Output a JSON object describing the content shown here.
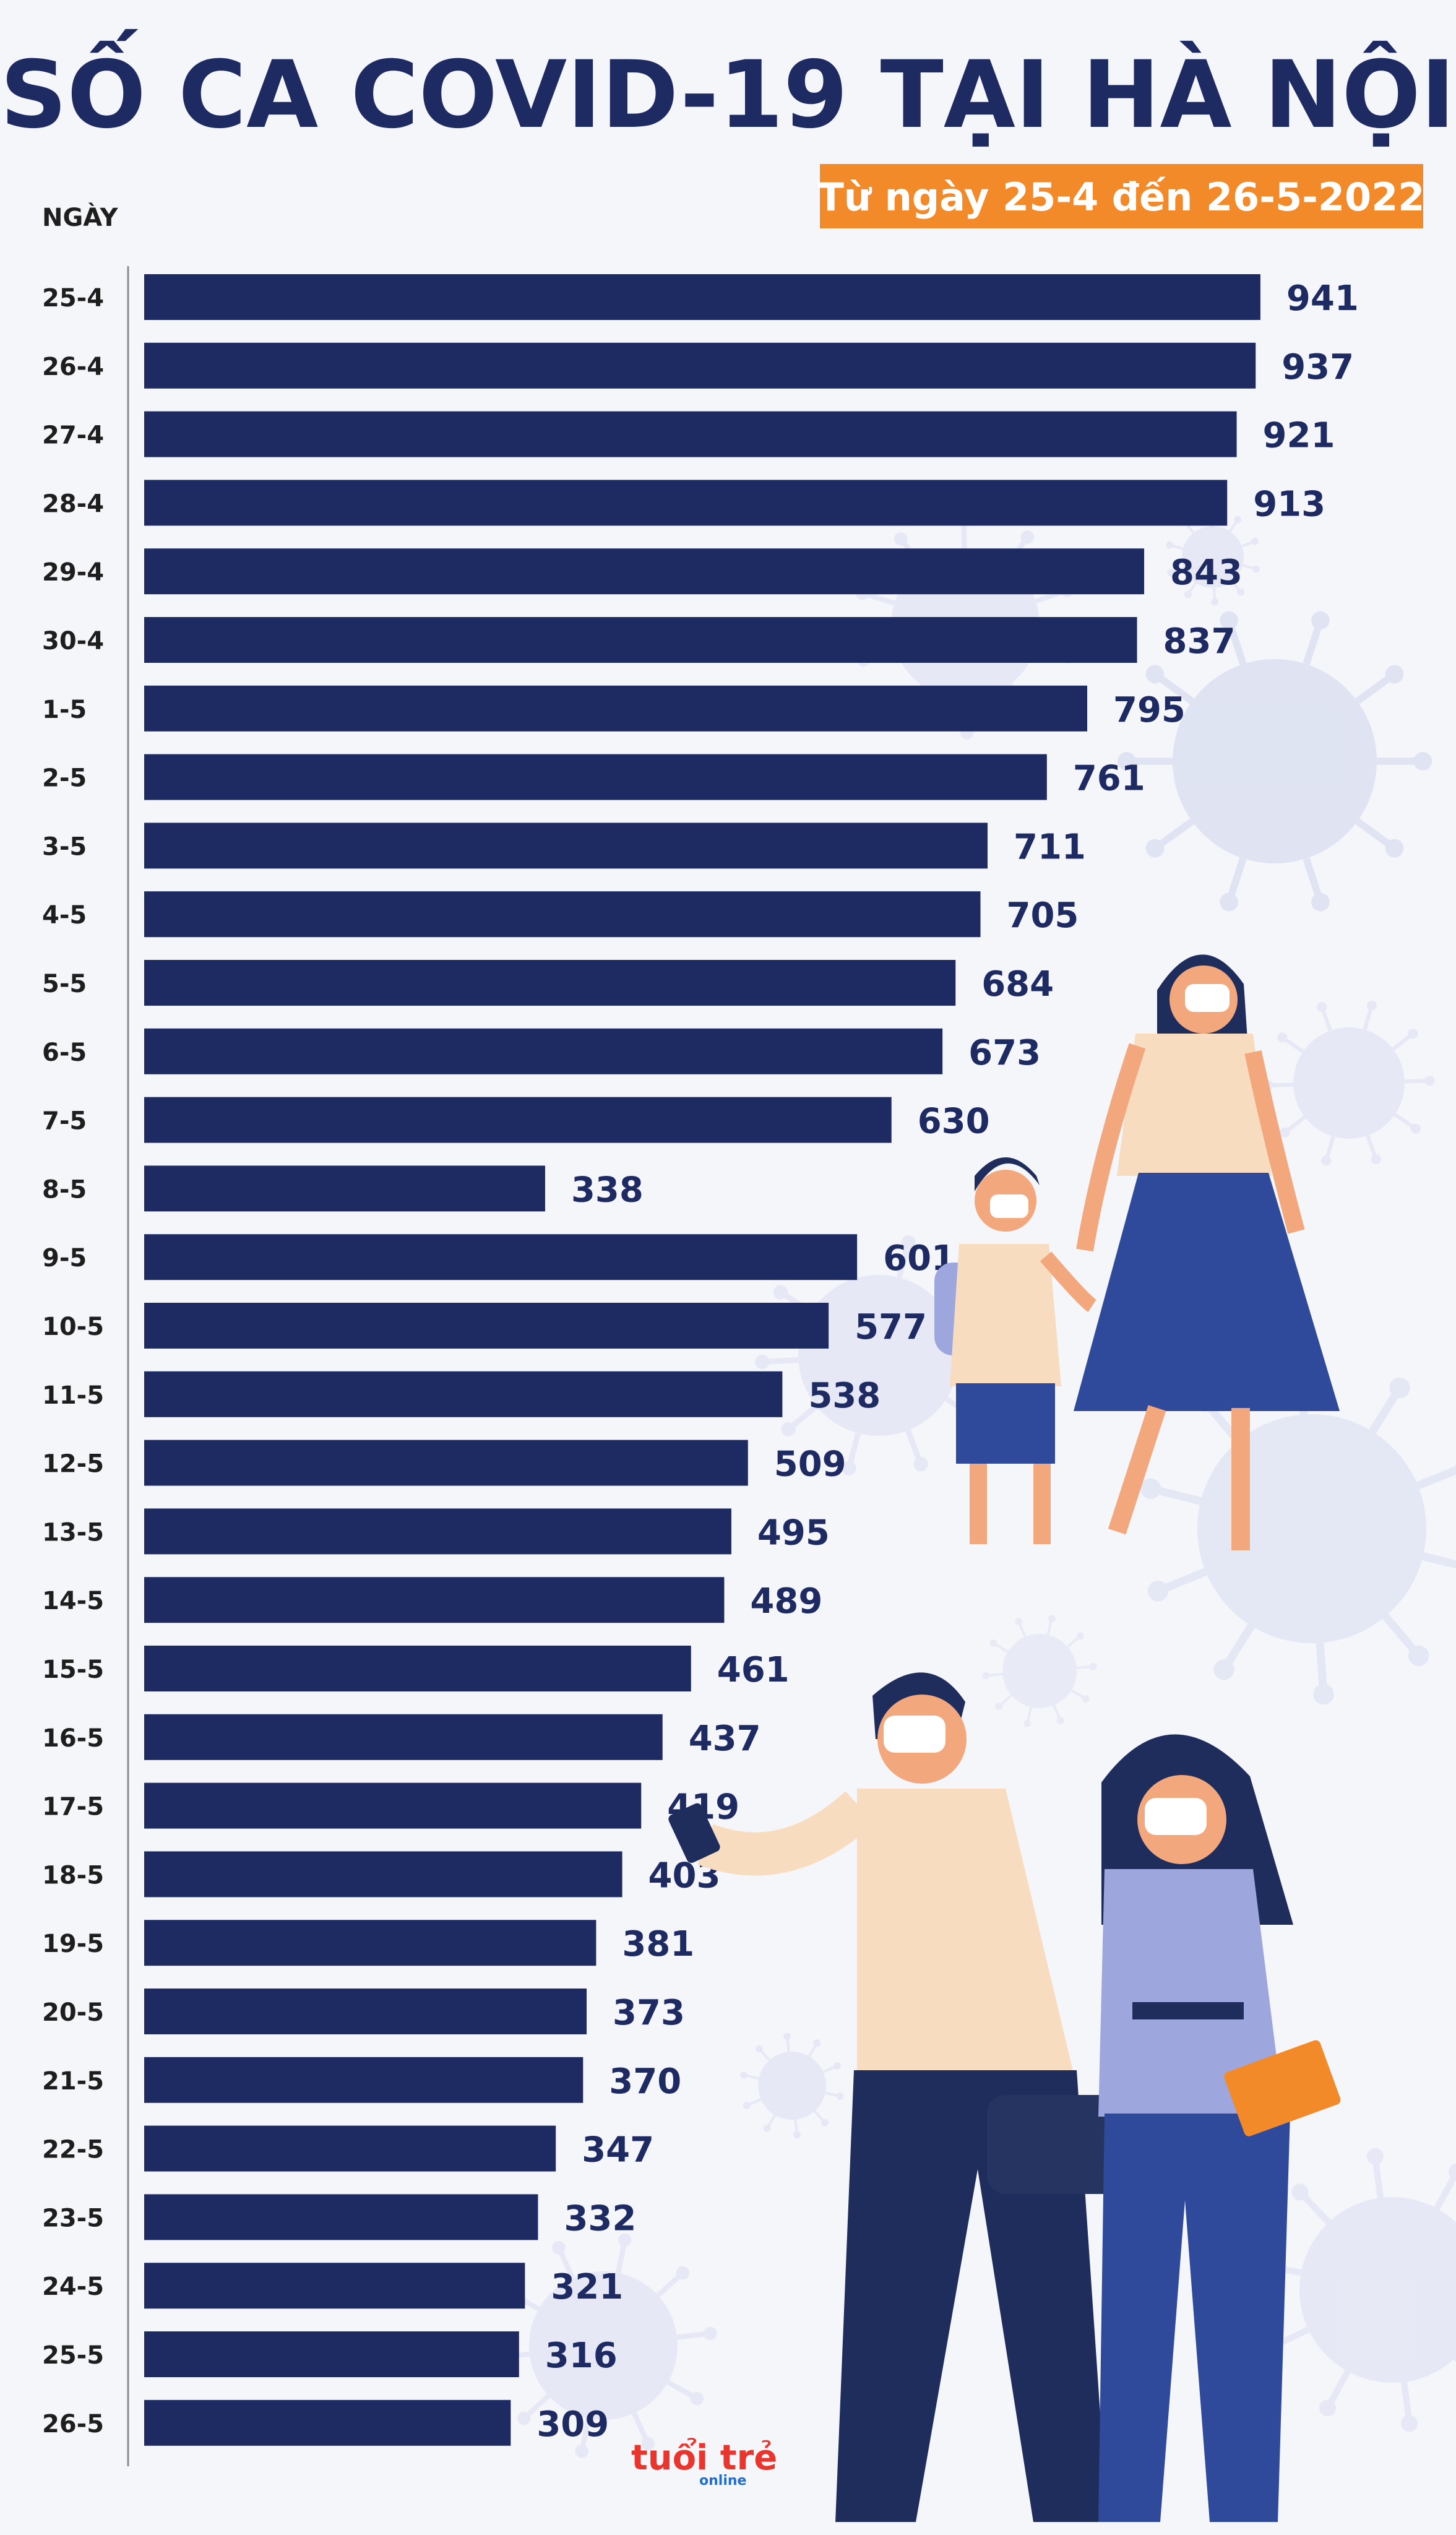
{
  "chart_data": {
    "type": "bar",
    "orientation": "horizontal",
    "title": "SỐ CA COVID-19 TẠI HÀ NỘI",
    "subtitle": "Từ ngày 25-4 đến 26-5-2022",
    "ylabel": "NGÀY",
    "xlim": [
      0,
      1000
    ],
    "grid": false,
    "categories": [
      "25-4",
      "26-4",
      "27-4",
      "28-4",
      "29-4",
      "30-4",
      "1-5",
      "2-5",
      "3-5",
      "4-5",
      "5-5",
      "6-5",
      "7-5",
      "8-5",
      "9-5",
      "10-5",
      "11-5",
      "12-5",
      "13-5",
      "14-5",
      "15-5",
      "16-5",
      "17-5",
      "18-5",
      "19-5",
      "20-5",
      "21-5",
      "22-5",
      "23-5",
      "24-5",
      "25-5",
      "26-5"
    ],
    "values": [
      941,
      937,
      921,
      913,
      843,
      837,
      795,
      761,
      711,
      705,
      684,
      673,
      630,
      338,
      601,
      577,
      538,
      509,
      495,
      489,
      461,
      437,
      419,
      403,
      381,
      373,
      370,
      347,
      332,
      321,
      316,
      309
    ]
  },
  "colors": {
    "bar": "#1e2b63",
    "title": "#1e2b63",
    "subtitle_bg": "#f28a2a",
    "background": "#f5f6fa",
    "virus": "#dde2f2"
  },
  "logo": {
    "text": "tuổi trẻ",
    "sub": "online"
  }
}
